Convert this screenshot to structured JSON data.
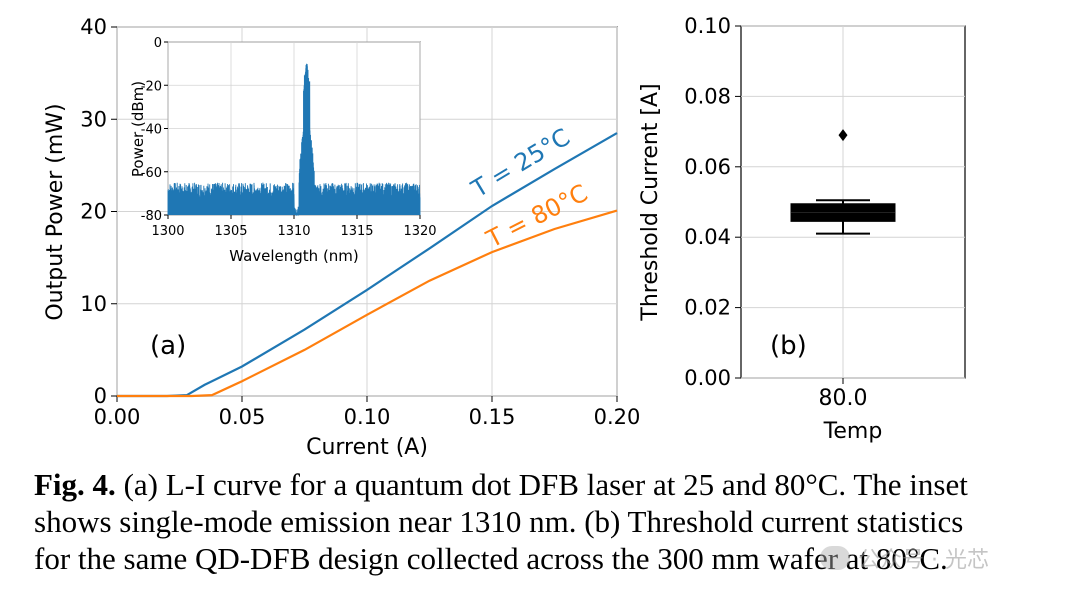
{
  "chart_data": [
    {
      "id": "a",
      "type": "line",
      "panel_label": "(a)",
      "xlabel": "Current (A)",
      "ylabel": "Output Power (mW)",
      "xlim": [
        0,
        0.2
      ],
      "ylim": [
        0,
        40
      ],
      "xticks": [
        "0.00",
        "0.05",
        "0.10",
        "0.15",
        "0.20"
      ],
      "yticks": [
        "0",
        "10",
        "20",
        "30",
        "40"
      ],
      "grid": true,
      "series": [
        {
          "name": "T = 25°C",
          "color": "#1f77b4",
          "x": [
            0,
            0.02,
            0.028,
            0.035,
            0.05,
            0.075,
            0.1,
            0.125,
            0.15,
            0.175,
            0.2
          ],
          "y": [
            0,
            0,
            0.1,
            1.2,
            3.2,
            7.2,
            11.5,
            16.0,
            20.6,
            24.6,
            28.5
          ]
        },
        {
          "name": "T = 80°C",
          "color": "#ff7f0e",
          "x": [
            0,
            0.03,
            0.038,
            0.05,
            0.075,
            0.1,
            0.125,
            0.15,
            0.175,
            0.2
          ],
          "y": [
            0,
            0,
            0.1,
            1.6,
            5.0,
            8.8,
            12.5,
            15.6,
            18.1,
            20.1
          ]
        }
      ],
      "inset": {
        "type": "line",
        "xlabel": "Wavelength (nm)",
        "ylabel": "Power (dBm)",
        "xlim": [
          1300,
          1320
        ],
        "ylim": [
          -80,
          0
        ],
        "xticks": [
          "1300",
          "1305",
          "1310",
          "1315",
          "1320"
        ],
        "yticks": [
          "0",
          "-20",
          "-40",
          "-60",
          "-80"
        ],
        "grid": true,
        "color": "#1f77b4",
        "noise_floor_dbm": [
          -72,
          -65
        ],
        "peak_wavelength_nm": 1311,
        "peak_power_dbm": -8
      }
    },
    {
      "id": "b",
      "type": "box",
      "panel_label": "(b)",
      "xlabel": "Temp",
      "ylabel": "Threshold Current [A]",
      "categories": [
        "80.0"
      ],
      "ylim": [
        0,
        0.1
      ],
      "yticks": [
        "0.00",
        "0.02",
        "0.04",
        "0.06",
        "0.08",
        "0.10"
      ],
      "grid": true,
      "box": {
        "min": 0.041,
        "q1": 0.0445,
        "median": 0.047,
        "q3": 0.0495,
        "max": 0.0505,
        "outliers": [
          0.069
        ]
      }
    }
  ],
  "caption": {
    "figlabel": "Fig. 4.",
    "line1": " (a) L-I curve for a quantum dot DFB laser at 25 and 80°C. The inset",
    "line2": "shows single-mode emission near 1310 nm. (b) Threshold current statistics",
    "line3": "for the same QD-DFB design collected across the 300 mm wafer at 80°C."
  },
  "watermark": "公众号 · 光芯"
}
